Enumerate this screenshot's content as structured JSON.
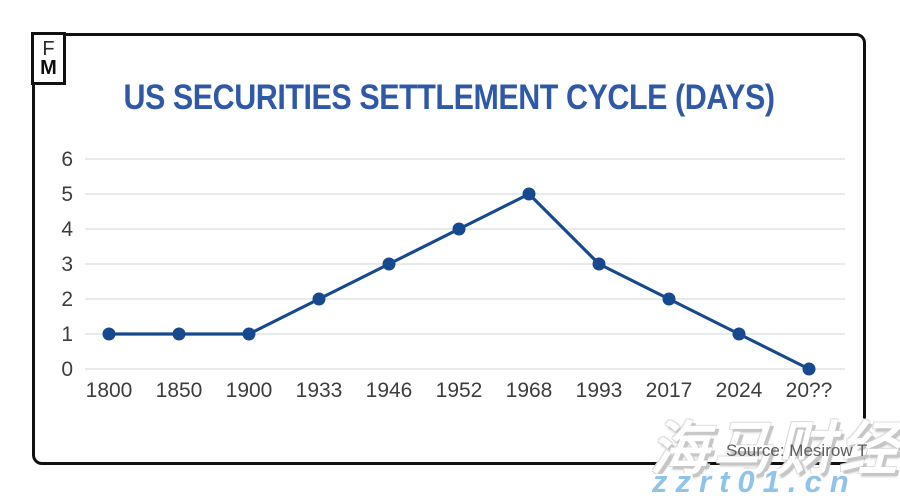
{
  "logo": {
    "line1": "F",
    "line2": "M"
  },
  "chart_data": {
    "type": "line",
    "title": "US SECURITIES SETTLEMENT CYCLE (DAYS)",
    "categories": [
      "1800",
      "1850",
      "1900",
      "1933",
      "1946",
      "1952",
      "1968",
      "1993",
      "2017",
      "2024",
      "20??"
    ],
    "values": [
      1,
      1,
      1,
      2,
      3,
      4,
      5,
      3,
      2,
      1,
      0
    ],
    "xlabel": "",
    "ylabel": "",
    "ylim": [
      0,
      6
    ],
    "yticks": [
      0,
      1,
      2,
      3,
      4,
      5,
      6
    ],
    "grid": true,
    "legend": "none",
    "marker": "circle"
  },
  "source": {
    "label": "Source: Mesirow T"
  },
  "watermarks": {
    "brand": "海马财经",
    "url": "zzrt01.cn"
  },
  "colors": {
    "line": "#17498f",
    "title": "#2f59a6",
    "axis_text": "#3d3d3d",
    "gridline": "#e7ebeb",
    "frame_border": "#111111",
    "source_text": "#5e5e5e",
    "watermark_url": "#8fc3ea",
    "watermark_brand": "#ffffff"
  }
}
